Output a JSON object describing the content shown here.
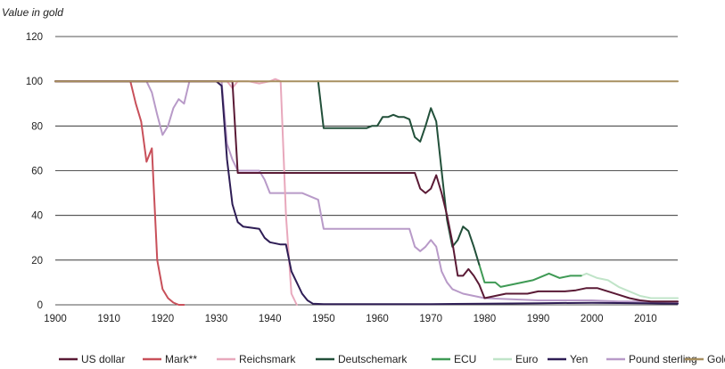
{
  "chart_data": {
    "type": "line",
    "ylabel": "Value in gold",
    "xlabel": "",
    "xlim": [
      1900,
      2016
    ],
    "ylim": [
      0,
      120
    ],
    "x_ticks": [
      1900,
      1910,
      1920,
      1930,
      1940,
      1950,
      1960,
      1970,
      1980,
      1990,
      2000,
      2010
    ],
    "y_ticks": [
      0,
      20,
      40,
      60,
      80,
      100,
      120
    ],
    "grid": "horizontal",
    "legend_position": "bottom",
    "series": [
      {
        "name": "US dollar",
        "color": "#5a1a35",
        "points": [
          [
            1900,
            100
          ],
          [
            1933,
            100
          ],
          [
            1934,
            59
          ],
          [
            1967,
            59
          ],
          [
            1968,
            52
          ],
          [
            1969,
            50
          ],
          [
            1970,
            52
          ],
          [
            1971,
            58
          ],
          [
            1972,
            50
          ],
          [
            1973,
            40
          ],
          [
            1974,
            28
          ],
          [
            1975,
            13
          ],
          [
            1976,
            13
          ],
          [
            1977,
            16
          ],
          [
            1978,
            13
          ],
          [
            1979,
            9
          ],
          [
            1980,
            3
          ],
          [
            1982,
            4
          ],
          [
            1984,
            5
          ],
          [
            1986,
            5
          ],
          [
            1988,
            5
          ],
          [
            1990,
            6
          ],
          [
            1992,
            6
          ],
          [
            1995,
            6
          ],
          [
            1997,
            6.5
          ],
          [
            1999,
            7.5
          ],
          [
            2001,
            7.5
          ],
          [
            2003,
            6
          ],
          [
            2005,
            4.5
          ],
          [
            2007,
            3
          ],
          [
            2009,
            2
          ],
          [
            2011,
            1.5
          ],
          [
            2013,
            1.5
          ],
          [
            2016,
            1.5
          ]
        ]
      },
      {
        "name": "Mark**",
        "color": "#c8505a",
        "points": [
          [
            1900,
            100
          ],
          [
            1914,
            100
          ],
          [
            1915,
            90
          ],
          [
            1916,
            82
          ],
          [
            1917,
            64
          ],
          [
            1918,
            70
          ],
          [
            1919,
            20
          ],
          [
            1920,
            7
          ],
          [
            1921,
            3
          ],
          [
            1922,
            1
          ],
          [
            1923,
            0
          ],
          [
            1924,
            0
          ]
        ]
      },
      {
        "name": "Reichsmark",
        "color": "#e8a8bc",
        "points": [
          [
            1924,
            100
          ],
          [
            1932,
            100
          ],
          [
            1933,
            97
          ],
          [
            1934,
            100
          ],
          [
            1936,
            100
          ],
          [
            1938,
            99
          ],
          [
            1940,
            100
          ],
          [
            1941,
            101
          ],
          [
            1942,
            100
          ],
          [
            1943,
            40
          ],
          [
            1944,
            5
          ],
          [
            1945,
            0
          ]
        ]
      },
      {
        "name": "Deutschemark",
        "color": "#22503a",
        "points": [
          [
            1949,
            100
          ],
          [
            1950,
            79
          ],
          [
            1958,
            79
          ],
          [
            1959,
            80
          ],
          [
            1960,
            80
          ],
          [
            1961,
            84
          ],
          [
            1962,
            84
          ],
          [
            1963,
            85
          ],
          [
            1964,
            84
          ],
          [
            1965,
            84
          ],
          [
            1966,
            83
          ],
          [
            1967,
            75
          ],
          [
            1968,
            73
          ],
          [
            1969,
            80
          ],
          [
            1970,
            88
          ],
          [
            1971,
            82
          ],
          [
            1972,
            60
          ],
          [
            1973,
            38
          ],
          [
            1974,
            26
          ],
          [
            1975,
            29
          ],
          [
            1976,
            35
          ],
          [
            1977,
            33
          ],
          [
            1978,
            26
          ],
          [
            1979,
            18
          ]
        ]
      },
      {
        "name": "ECU",
        "color": "#3f9a55",
        "points": [
          [
            1979,
            18
          ],
          [
            1980,
            10
          ],
          [
            1982,
            10
          ],
          [
            1983,
            8
          ],
          [
            1985,
            9
          ],
          [
            1987,
            10
          ],
          [
            1989,
            11
          ],
          [
            1991,
            13
          ],
          [
            1992,
            14
          ],
          [
            1994,
            12
          ],
          [
            1996,
            13
          ],
          [
            1998,
            13
          ]
        ]
      },
      {
        "name": "Euro",
        "color": "#c0e4c8",
        "points": [
          [
            1998,
            13
          ],
          [
            1999,
            14
          ],
          [
            2001,
            12
          ],
          [
            2003,
            11
          ],
          [
            2005,
            8
          ],
          [
            2007,
            6
          ],
          [
            2009,
            4
          ],
          [
            2011,
            3
          ],
          [
            2013,
            3
          ],
          [
            2016,
            3
          ]
        ]
      },
      {
        "name": "Yen",
        "color": "#2e1d55",
        "points": [
          [
            1900,
            100
          ],
          [
            1930,
            100
          ],
          [
            1931,
            98
          ],
          [
            1932,
            65
          ],
          [
            1933,
            45
          ],
          [
            1934,
            37
          ],
          [
            1935,
            35
          ],
          [
            1938,
            34
          ],
          [
            1939,
            30
          ],
          [
            1940,
            28
          ],
          [
            1942,
            27
          ],
          [
            1943,
            27
          ],
          [
            1944,
            15
          ],
          [
            1945,
            10
          ],
          [
            1946,
            5
          ],
          [
            1947,
            2
          ],
          [
            1948,
            0.5
          ],
          [
            1950,
            0.3
          ],
          [
            1970,
            0.3
          ],
          [
            1980,
            0.5
          ],
          [
            1990,
            0.7
          ],
          [
            2000,
            0.9
          ],
          [
            2010,
            0.7
          ],
          [
            2016,
            0.5
          ]
        ]
      },
      {
        "name": "Pound sterling",
        "color": "#b89ac8",
        "points": [
          [
            1900,
            100
          ],
          [
            1914,
            100
          ],
          [
            1915,
            100
          ],
          [
            1916,
            100
          ],
          [
            1917,
            100
          ],
          [
            1918,
            95
          ],
          [
            1919,
            85
          ],
          [
            1920,
            76
          ],
          [
            1921,
            80
          ],
          [
            1922,
            88
          ],
          [
            1923,
            92
          ],
          [
            1924,
            90
          ],
          [
            1925,
            100
          ],
          [
            1931,
            100
          ],
          [
            1932,
            72
          ],
          [
            1933,
            65
          ],
          [
            1934,
            60
          ],
          [
            1938,
            60
          ],
          [
            1939,
            56
          ],
          [
            1940,
            50
          ],
          [
            1946,
            50
          ],
          [
            1949,
            47
          ],
          [
            1950,
            34
          ],
          [
            1966,
            34
          ],
          [
            1967,
            26
          ],
          [
            1968,
            24
          ],
          [
            1969,
            26
          ],
          [
            1970,
            29
          ],
          [
            1971,
            26
          ],
          [
            1972,
            15
          ],
          [
            1973,
            10
          ],
          [
            1974,
            7
          ],
          [
            1976,
            5
          ],
          [
            1980,
            3
          ],
          [
            1985,
            2.5
          ],
          [
            1990,
            2
          ],
          [
            2000,
            2
          ],
          [
            2005,
            1.5
          ],
          [
            2010,
            1.5
          ],
          [
            2016,
            1
          ]
        ]
      },
      {
        "name": "Gold",
        "color": "#a89060",
        "points": [
          [
            1900,
            100
          ],
          [
            2016,
            100
          ]
        ]
      }
    ]
  }
}
